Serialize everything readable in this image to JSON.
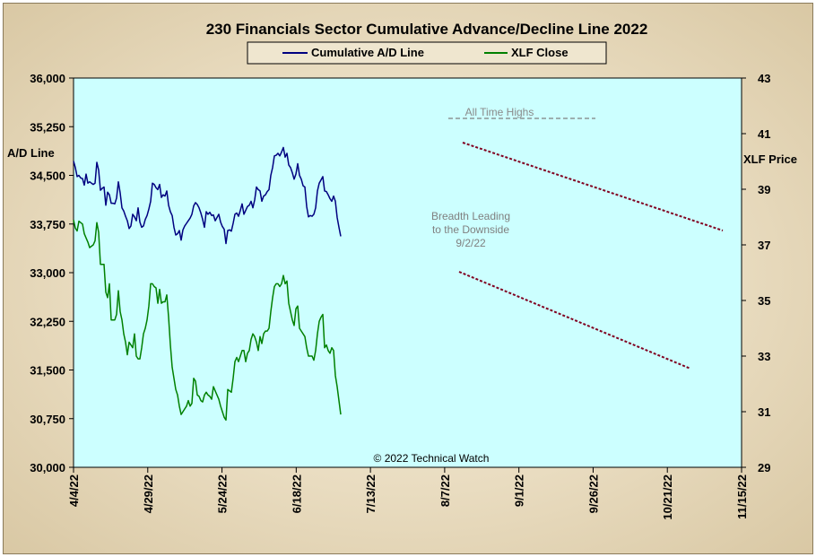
{
  "chart_data": {
    "type": "line",
    "title": "230 Financials  Sector Cumulative  Advance/Decline  Line 2022",
    "ylabel_left": "A/D Line",
    "ylabel_right": "XLF Price",
    "ylim_left": [
      30000,
      36000
    ],
    "ylim_right": [
      29,
      43
    ],
    "yticks_left": [
      "36,000",
      "35,250",
      "34,500",
      "33,750",
      "33,000",
      "32,250",
      "31,500",
      "30,750",
      "30,000"
    ],
    "yticks_right": [
      "43",
      "41",
      "39",
      "37",
      "35",
      "33",
      "31",
      "29"
    ],
    "xticks": [
      "4/4/22",
      "4/29/22",
      "5/24/22",
      "6/18/22",
      "7/13/22",
      "8/7/22",
      "9/1/22",
      "9/26/22",
      "10/21/22",
      "11/15/22"
    ],
    "legend_position": "top-center",
    "background": "#ccffff",
    "colors": {
      "ad_line": "#000080",
      "xlf": "#008000",
      "trend": "#800020",
      "highs": "#808080"
    },
    "annotations": {
      "all_time_highs": "All Time Highs",
      "breadth_line1": "Breadth Leading",
      "breadth_line2": "to the Downside",
      "breadth_line3": "9/2/22",
      "copyright": "© 2022 Technical Watch"
    },
    "series": [
      {
        "name": "Cumulative A/D Line",
        "axis": "left",
        "points": [
          [
            0,
            34720
          ],
          [
            2,
            34620
          ],
          [
            4,
            34480
          ],
          [
            6,
            34500
          ],
          [
            8,
            34460
          ],
          [
            10,
            34450
          ],
          [
            12,
            34350
          ],
          [
            14,
            34520
          ],
          [
            16,
            34380
          ],
          [
            18,
            34400
          ],
          [
            20,
            34380
          ],
          [
            22,
            34360
          ],
          [
            24,
            34380
          ],
          [
            26,
            34700
          ],
          [
            28,
            34580
          ],
          [
            30,
            34270
          ],
          [
            32,
            34300
          ],
          [
            34,
            34320
          ],
          [
            36,
            34040
          ],
          [
            38,
            34240
          ],
          [
            40,
            34200
          ],
          [
            42,
            34070
          ],
          [
            44,
            34070
          ],
          [
            46,
            34060
          ],
          [
            48,
            34150
          ],
          [
            50,
            34400
          ],
          [
            52,
            34230
          ],
          [
            54,
            34000
          ],
          [
            56,
            33950
          ],
          [
            58,
            33870
          ],
          [
            60,
            33800
          ],
          [
            62,
            33680
          ],
          [
            64,
            33720
          ],
          [
            66,
            33900
          ],
          [
            68,
            33860
          ],
          [
            70,
            33800
          ],
          [
            72,
            34000
          ],
          [
            74,
            33780
          ],
          [
            76,
            33700
          ],
          [
            78,
            33720
          ],
          [
            80,
            33820
          ],
          [
            82,
            33880
          ],
          [
            84,
            33980
          ],
          [
            86,
            34100
          ],
          [
            88,
            34380
          ],
          [
            90,
            34360
          ],
          [
            92,
            34310
          ],
          [
            94,
            34280
          ],
          [
            96,
            34360
          ],
          [
            98,
            34160
          ],
          [
            100,
            34200
          ],
          [
            102,
            34180
          ],
          [
            104,
            34260
          ],
          [
            106,
            34040
          ],
          [
            108,
            33940
          ],
          [
            110,
            33880
          ],
          [
            112,
            33700
          ],
          [
            114,
            33580
          ],
          [
            116,
            33600
          ],
          [
            118,
            33650
          ],
          [
            120,
            33500
          ],
          [
            122,
            33660
          ],
          [
            124,
            33720
          ],
          [
            126,
            33760
          ],
          [
            128,
            33800
          ],
          [
            130,
            33840
          ],
          [
            132,
            33900
          ],
          [
            134,
            34030
          ],
          [
            136,
            34080
          ],
          [
            138,
            34050
          ],
          [
            140,
            34000
          ],
          [
            142,
            33920
          ],
          [
            144,
            33820
          ],
          [
            146,
            33700
          ],
          [
            148,
            33940
          ],
          [
            150,
            33900
          ],
          [
            152,
            33930
          ],
          [
            154,
            33880
          ],
          [
            156,
            33890
          ],
          [
            158,
            33800
          ],
          [
            160,
            33850
          ],
          [
            162,
            33900
          ],
          [
            164,
            33780
          ],
          [
            166,
            33710
          ],
          [
            168,
            33670
          ],
          [
            170,
            33450
          ],
          [
            172,
            33650
          ],
          [
            174,
            33660
          ],
          [
            176,
            33640
          ],
          [
            178,
            33760
          ],
          [
            180,
            33900
          ],
          [
            182,
            33920
          ],
          [
            184,
            33870
          ],
          [
            186,
            33960
          ],
          [
            188,
            34060
          ],
          [
            190,
            33900
          ],
          [
            192,
            33960
          ],
          [
            194,
            34020
          ],
          [
            196,
            34040
          ],
          [
            198,
            34100
          ],
          [
            200,
            34000
          ],
          [
            202,
            34120
          ],
          [
            204,
            34320
          ],
          [
            206,
            34280
          ],
          [
            208,
            34260
          ],
          [
            210,
            34100
          ],
          [
            212,
            34180
          ],
          [
            214,
            34200
          ],
          [
            216,
            34250
          ],
          [
            218,
            34280
          ],
          [
            220,
            34500
          ],
          [
            222,
            34620
          ],
          [
            224,
            34800
          ],
          [
            226,
            34810
          ],
          [
            228,
            34840
          ],
          [
            230,
            34800
          ],
          [
            232,
            34860
          ],
          [
            234,
            34930
          ],
          [
            236,
            34780
          ],
          [
            238,
            34840
          ],
          [
            240,
            34660
          ],
          [
            242,
            34620
          ],
          [
            244,
            34540
          ],
          [
            246,
            34440
          ],
          [
            248,
            34520
          ],
          [
            250,
            34680
          ],
          [
            252,
            34500
          ],
          [
            254,
            34440
          ],
          [
            256,
            34340
          ],
          [
            258,
            34320
          ],
          [
            260,
            34020
          ],
          [
            262,
            33860
          ],
          [
            264,
            33880
          ],
          [
            266,
            33870
          ],
          [
            268,
            33900
          ],
          [
            270,
            34000
          ],
          [
            272,
            34260
          ],
          [
            274,
            34380
          ],
          [
            276,
            34430
          ],
          [
            278,
            34480
          ],
          [
            280,
            34260
          ],
          [
            282,
            34250
          ],
          [
            284,
            34200
          ],
          [
            286,
            34140
          ],
          [
            288,
            34100
          ],
          [
            290,
            34180
          ],
          [
            292,
            34100
          ],
          [
            294,
            33850
          ],
          [
            296,
            33700
          ],
          [
            298,
            33560
          ]
        ]
      },
      {
        "name": "XLF Close",
        "axis": "right",
        "points": [
          [
            0,
            37.9
          ],
          [
            2,
            37.6
          ],
          [
            4,
            37.5
          ],
          [
            6,
            37.85
          ],
          [
            8,
            37.8
          ],
          [
            10,
            37.75
          ],
          [
            12,
            37.4
          ],
          [
            14,
            37.25
          ],
          [
            16,
            37.1
          ],
          [
            18,
            36.9
          ],
          [
            20,
            36.95
          ],
          [
            22,
            37.0
          ],
          [
            24,
            37.15
          ],
          [
            26,
            37.8
          ],
          [
            28,
            37.45
          ],
          [
            30,
            36.3
          ],
          [
            32,
            36.3
          ],
          [
            34,
            36.3
          ],
          [
            36,
            35.3
          ],
          [
            38,
            35.1
          ],
          [
            40,
            35.6
          ],
          [
            42,
            34.3
          ],
          [
            44,
            34.3
          ],
          [
            46,
            34.3
          ],
          [
            48,
            34.5
          ],
          [
            50,
            35.35
          ],
          [
            52,
            34.6
          ],
          [
            54,
            34.3
          ],
          [
            56,
            33.8
          ],
          [
            58,
            33.5
          ],
          [
            60,
            33.05
          ],
          [
            62,
            33.5
          ],
          [
            64,
            33.4
          ],
          [
            66,
            33.3
          ],
          [
            68,
            33.8
          ],
          [
            70,
            33.0
          ],
          [
            72,
            32.9
          ],
          [
            74,
            32.9
          ],
          [
            76,
            33.3
          ],
          [
            78,
            33.8
          ],
          [
            80,
            34.0
          ],
          [
            82,
            34.3
          ],
          [
            84,
            34.8
          ],
          [
            86,
            35.6
          ],
          [
            88,
            35.6
          ],
          [
            90,
            35.5
          ],
          [
            92,
            35.45
          ],
          [
            94,
            34.9
          ],
          [
            96,
            35.4
          ],
          [
            98,
            34.9
          ],
          [
            100,
            34.95
          ],
          [
            102,
            34.95
          ],
          [
            104,
            35.2
          ],
          [
            106,
            34.4
          ],
          [
            108,
            33.4
          ],
          [
            110,
            32.6
          ],
          [
            112,
            32.2
          ],
          [
            114,
            31.8
          ],
          [
            116,
            31.6
          ],
          [
            118,
            31.2
          ],
          [
            120,
            30.9
          ],
          [
            122,
            31.0
          ],
          [
            124,
            31.1
          ],
          [
            126,
            31.2
          ],
          [
            128,
            31.4
          ],
          [
            130,
            31.2
          ],
          [
            132,
            31.3
          ],
          [
            134,
            32.2
          ],
          [
            136,
            32.1
          ],
          [
            138,
            31.6
          ],
          [
            140,
            31.55
          ],
          [
            142,
            31.4
          ],
          [
            144,
            31.35
          ],
          [
            146,
            31.6
          ],
          [
            148,
            31.7
          ],
          [
            150,
            31.6
          ],
          [
            152,
            31.55
          ],
          [
            154,
            31.45
          ],
          [
            156,
            31.9
          ],
          [
            158,
            31.75
          ],
          [
            160,
            31.6
          ],
          [
            162,
            31.45
          ],
          [
            164,
            31.2
          ],
          [
            166,
            31.0
          ],
          [
            168,
            30.8
          ],
          [
            170,
            30.7
          ],
          [
            172,
            31.8
          ],
          [
            174,
            31.75
          ],
          [
            176,
            31.7
          ],
          [
            178,
            32.2
          ],
          [
            180,
            32.8
          ],
          [
            182,
            32.95
          ],
          [
            184,
            32.8
          ],
          [
            186,
            33.0
          ],
          [
            188,
            33.2
          ],
          [
            190,
            33.2
          ],
          [
            192,
            32.8
          ],
          [
            194,
            33.1
          ],
          [
            196,
            33.2
          ],
          [
            198,
            33.6
          ],
          [
            200,
            33.8
          ],
          [
            202,
            33.7
          ],
          [
            204,
            33.5
          ],
          [
            206,
            33.2
          ],
          [
            208,
            33.7
          ],
          [
            210,
            33.45
          ],
          [
            212,
            33.8
          ],
          [
            214,
            33.9
          ],
          [
            216,
            33.9
          ],
          [
            218,
            34.0
          ],
          [
            220,
            34.6
          ],
          [
            222,
            35.1
          ],
          [
            224,
            35.5
          ],
          [
            226,
            35.6
          ],
          [
            228,
            35.6
          ],
          [
            230,
            35.5
          ],
          [
            232,
            35.6
          ],
          [
            234,
            35.9
          ],
          [
            236,
            35.6
          ],
          [
            238,
            35.7
          ],
          [
            240,
            34.9
          ],
          [
            242,
            34.6
          ],
          [
            244,
            34.3
          ],
          [
            246,
            34.1
          ],
          [
            248,
            34.7
          ],
          [
            250,
            34.8
          ],
          [
            252,
            34.0
          ],
          [
            254,
            33.9
          ],
          [
            256,
            33.8
          ],
          [
            258,
            33.7
          ],
          [
            260,
            33.3
          ],
          [
            262,
            33.0
          ],
          [
            264,
            33.0
          ],
          [
            266,
            33.0
          ],
          [
            268,
            32.85
          ],
          [
            270,
            33.2
          ],
          [
            272,
            33.8
          ],
          [
            274,
            34.25
          ],
          [
            276,
            34.4
          ],
          [
            278,
            34.5
          ],
          [
            280,
            33.3
          ],
          [
            282,
            33.4
          ],
          [
            284,
            33.2
          ],
          [
            286,
            33.1
          ],
          [
            288,
            33.3
          ],
          [
            290,
            33.2
          ],
          [
            292,
            32.3
          ],
          [
            294,
            31.9
          ],
          [
            296,
            31.4
          ],
          [
            298,
            30.9
          ]
        ]
      }
    ]
  }
}
